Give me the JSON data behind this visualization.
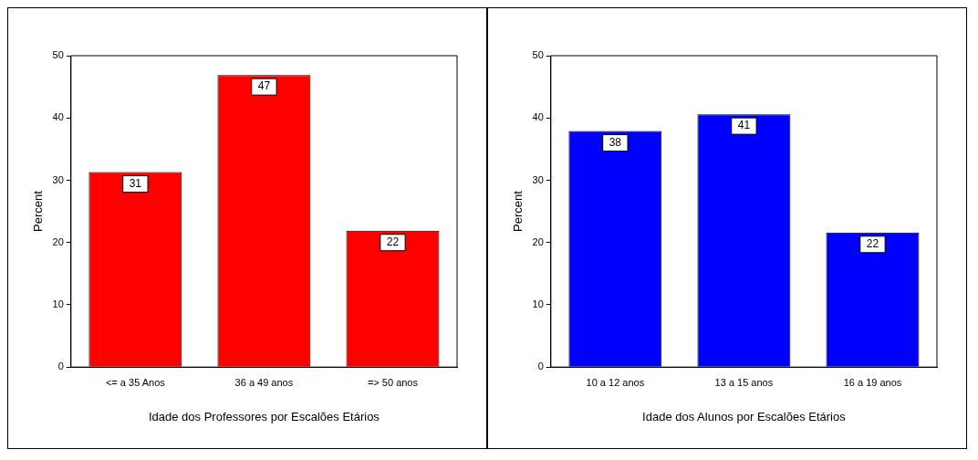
{
  "chart_data": [
    {
      "type": "bar",
      "categories": [
        "<= a 35 Anos",
        "36 a 49 anos",
        "=> 50 anos"
      ],
      "values": [
        31.3,
        46.9,
        21.9
      ],
      "value_labels": [
        "31",
        "47",
        "22"
      ],
      "color": "#ff0000",
      "ylim": [
        0,
        50
      ],
      "yticks": [
        0,
        10,
        20,
        30,
        40,
        50
      ],
      "xlabel": "Idade dos Professores por Escalões Etários",
      "ylabel": "Percent"
    },
    {
      "type": "bar",
      "categories": [
        "10 a 12 anos",
        "13 a 15 anos",
        "16 a 19 anos"
      ],
      "values": [
        37.9,
        40.6,
        21.6
      ],
      "value_labels": [
        "38",
        "41",
        "22"
      ],
      "color": "#0000ff",
      "ylim": [
        0,
        50
      ],
      "yticks": [
        0,
        10,
        20,
        30,
        40,
        50
      ],
      "xlabel": "Idade dos Alunos por Escalões Etários",
      "ylabel": "Percent"
    }
  ]
}
